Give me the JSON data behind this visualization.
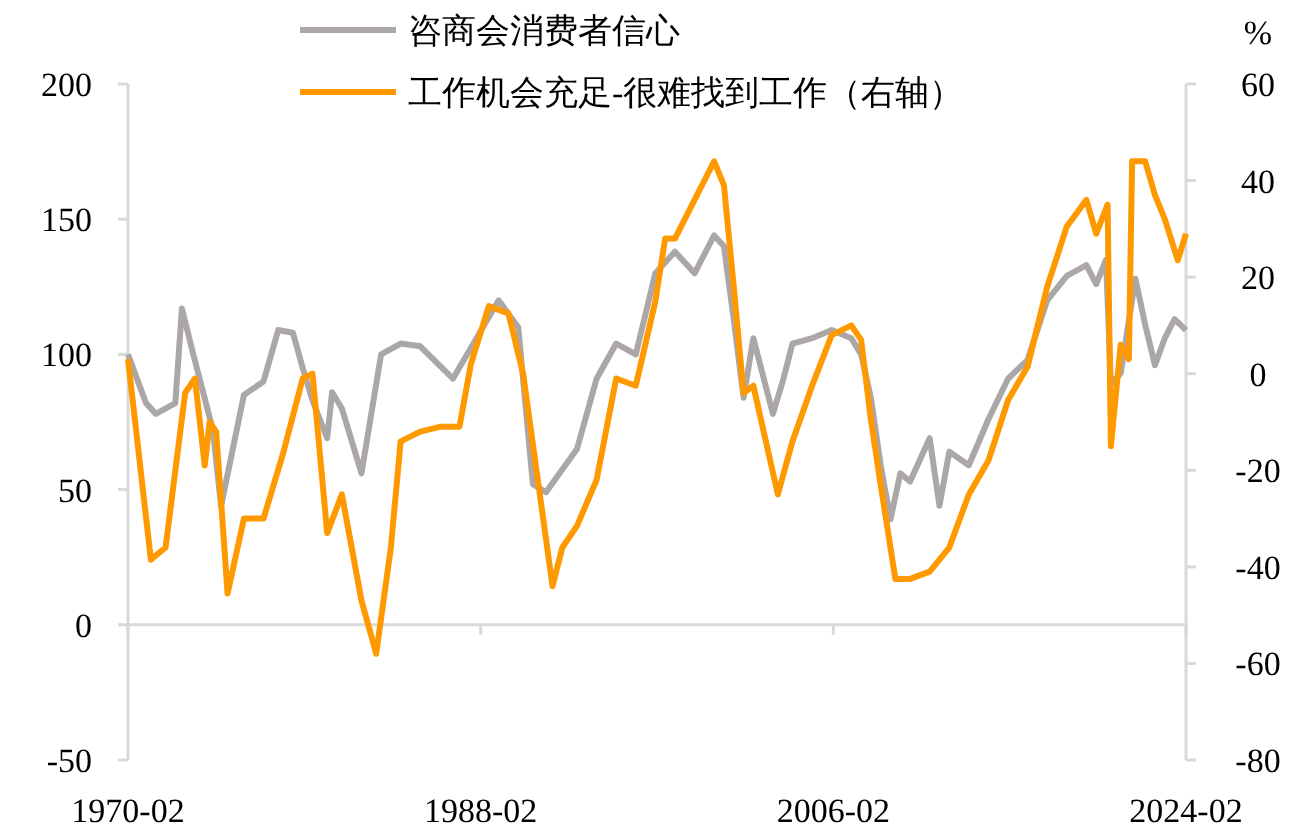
{
  "chart_data": {
    "type": "line",
    "legend": "top",
    "xlim": [
      "1970-02",
      "2024-02"
    ],
    "xticks": [
      "1970-02",
      "1988-02",
      "2006-02",
      "2024-02"
    ],
    "ylim": [
      -50,
      200
    ],
    "yticks": [
      -50,
      0,
      50,
      100,
      150,
      200
    ],
    "y2lim": [
      -80,
      60
    ],
    "y2ticks": [
      -80,
      -60,
      -40,
      -20,
      0,
      20,
      40,
      60
    ],
    "y2label": "%",
    "series": [
      {
        "name": "咨商会消费者信心",
        "color": "#aba7a7",
        "x": [
          "1970-02",
          "1971-01",
          "1971-07",
          "1972-07",
          "1972-11",
          "1973-06",
          "1974-06",
          "1974-11",
          "1976-01",
          "1977-01",
          "1977-10",
          "1978-07",
          "1979-01",
          "1979-07",
          "1980-04",
          "1980-07",
          "1981-01",
          "1982-01",
          "1983-01",
          "1984-01",
          "1985-01",
          "1986-09",
          "1989-01",
          "1990-01",
          "1990-10",
          "1991-06",
          "1993-01",
          "1994-01",
          "1995-01",
          "1996-01",
          "1997-01",
          "1998-01",
          "1999-01",
          "2000-01",
          "2000-07",
          "2001-01",
          "2001-07",
          "2002-01",
          "2003-01",
          "2003-07",
          "2004-01",
          "2005-01",
          "2006-01",
          "2007-01",
          "2007-07",
          "2008-01",
          "2008-07",
          "2009-01",
          "2009-07",
          "2010-01",
          "2011-01",
          "2011-07",
          "2012-01",
          "2013-01",
          "2014-01",
          "2015-01",
          "2016-01",
          "2017-01",
          "2018-01",
          "2019-01",
          "2019-07",
          "2020-01",
          "2020-04",
          "2020-10",
          "2021-07",
          "2022-01",
          "2022-07",
          "2023-01",
          "2023-07",
          "2024-02"
        ],
        "values": [
          100,
          82,
          78,
          82,
          117,
          100,
          72,
          44,
          85,
          90,
          109,
          108,
          95,
          83,
          69,
          86,
          80,
          56,
          100,
          104,
          103,
          91,
          120,
          110,
          52,
          49,
          65,
          91,
          104,
          100,
          130,
          138,
          130,
          144,
          140,
          113,
          84,
          106,
          78,
          90,
          104,
          106,
          109,
          106,
          100,
          84,
          59,
          39,
          56,
          53,
          69,
          44,
          64,
          59,
          76,
          91,
          98,
          120,
          129,
          133,
          126,
          135,
          89,
          93,
          128,
          111,
          96,
          106,
          113,
          109
        ]
      },
      {
        "name": "工作机会充足-很难找到工作（右轴）",
        "color": "#ff9900",
        "axis": "y2",
        "x": [
          "1970-02",
          "1971-04",
          "1972-01",
          "1973-01",
          "1973-07",
          "1974-01",
          "1974-04",
          "1974-08",
          "1975-03",
          "1976-01",
          "1977-01",
          "1978-01",
          "1979-01",
          "1979-07",
          "1980-04",
          "1981-01",
          "1982-01",
          "1982-10",
          "1983-07",
          "1984-01",
          "1985-01",
          "1986-01",
          "1987-01",
          "1987-08",
          "1988-07",
          "1989-07",
          "1990-04",
          "1991-01",
          "1991-10",
          "1992-04",
          "1993-01",
          "1994-01",
          "1995-01",
          "1996-01",
          "1997-01",
          "1997-07",
          "1998-01",
          "1999-01",
          "2000-01",
          "2000-07",
          "2001-01",
          "2001-07",
          "2002-01",
          "2003-04",
          "2004-01",
          "2005-01",
          "2006-01",
          "2007-01",
          "2007-07",
          "2008-01",
          "2008-07",
          "2009-04",
          "2010-01",
          "2011-01",
          "2012-01",
          "2013-01",
          "2014-01",
          "2015-01",
          "2016-01",
          "2017-01",
          "2018-01",
          "2019-01",
          "2019-07",
          "2020-02",
          "2020-04",
          "2020-10",
          "2021-03",
          "2021-05",
          "2022-01",
          "2022-07",
          "2023-01",
          "2023-09",
          "2024-02"
        ],
        "values": [
          3,
          -38.5,
          -36,
          -4,
          -1,
          -19,
          -10,
          -12,
          -45.5,
          -30,
          -30,
          -16.5,
          -1,
          0,
          -33,
          -25,
          -47,
          -58,
          -36,
          -14,
          -12,
          -11,
          -11,
          2,
          14,
          12.5,
          0,
          -22,
          -44,
          -36,
          -31.5,
          -22,
          -1,
          -2.5,
          15,
          28,
          28,
          36,
          44,
          39,
          18,
          -4,
          -2.5,
          -25,
          -14,
          -2.5,
          8,
          10,
          7,
          -9.5,
          -23,
          -42.5,
          -42.5,
          -41,
          -36,
          -25,
          -18,
          -5.5,
          1.5,
          18,
          30.5,
          36,
          29,
          35,
          -15,
          6,
          3,
          44,
          44,
          37,
          32,
          23.5,
          29
        ]
      }
    ]
  }
}
